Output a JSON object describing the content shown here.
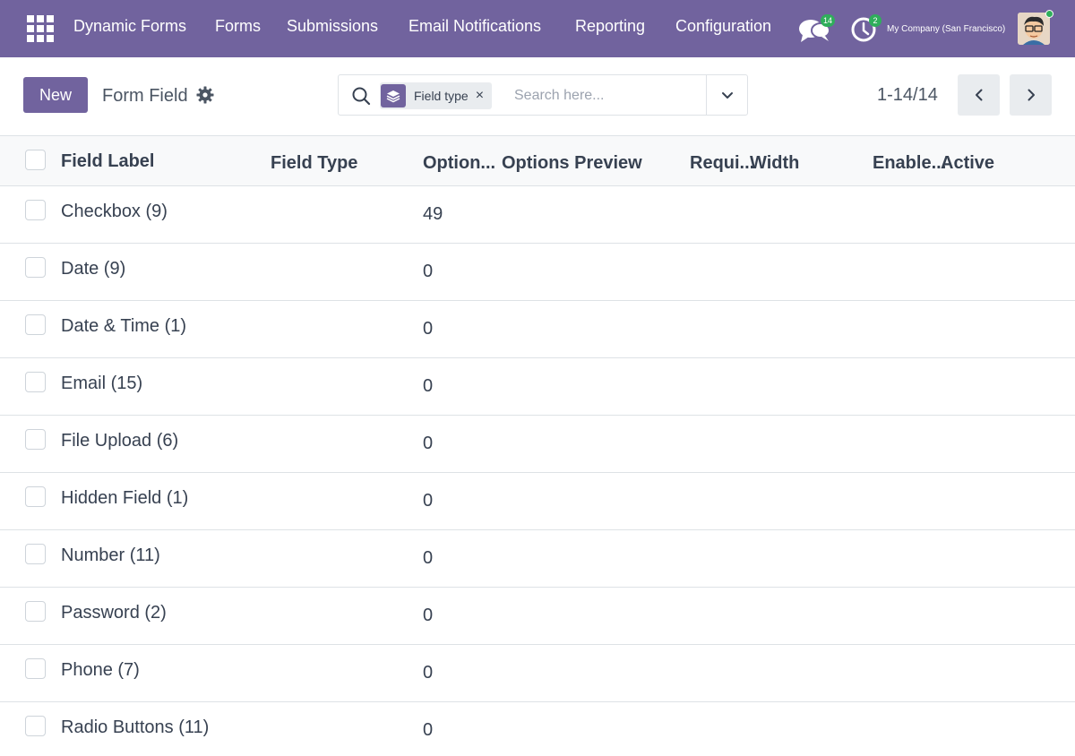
{
  "navbar": {
    "brand": "Dynamic Forms",
    "menu": [
      "Forms",
      "Submissions",
      "Email Notifications",
      "Reporting",
      "Configuration"
    ],
    "chat_count": "14",
    "activity_count": "2",
    "company": "My Company (San Francisco)"
  },
  "control_panel": {
    "new_label": "New",
    "breadcrumb": "Form Field",
    "search": {
      "facet_label": "Field type",
      "facet_close": "×",
      "placeholder": "Search here..."
    },
    "pager_value": "1-14/14"
  },
  "list": {
    "columns": [
      "Field Label",
      "Field Type",
      "Option...",
      "Options Preview",
      "Requi...",
      "Width",
      "Enable...",
      "Active"
    ],
    "groups": [
      {
        "label": "Checkbox (9)",
        "count": "49"
      },
      {
        "label": "Date (9)",
        "count": "0"
      },
      {
        "label": "Date & Time (1)",
        "count": "0"
      },
      {
        "label": "Email (15)",
        "count": "0"
      },
      {
        "label": "File Upload (6)",
        "count": "0"
      },
      {
        "label": "Hidden Field (1)",
        "count": "0"
      },
      {
        "label": "Number (11)",
        "count": "0"
      },
      {
        "label": "Password (2)",
        "count": "0"
      },
      {
        "label": "Phone (7)",
        "count": "0"
      },
      {
        "label": "Radio Buttons (11)",
        "count": "0"
      }
    ]
  },
  "colors": {
    "brand": "#71639e",
    "badge": "#2fae5b",
    "border": "#dee2e6",
    "header_bg": "#f8f9fa"
  },
  "icons": [
    "apps-icon",
    "chat-icon",
    "clock-icon",
    "gear-icon",
    "search-icon",
    "layers-icon",
    "chevron-down-icon",
    "chevron-left-icon",
    "chevron-right-icon"
  ]
}
